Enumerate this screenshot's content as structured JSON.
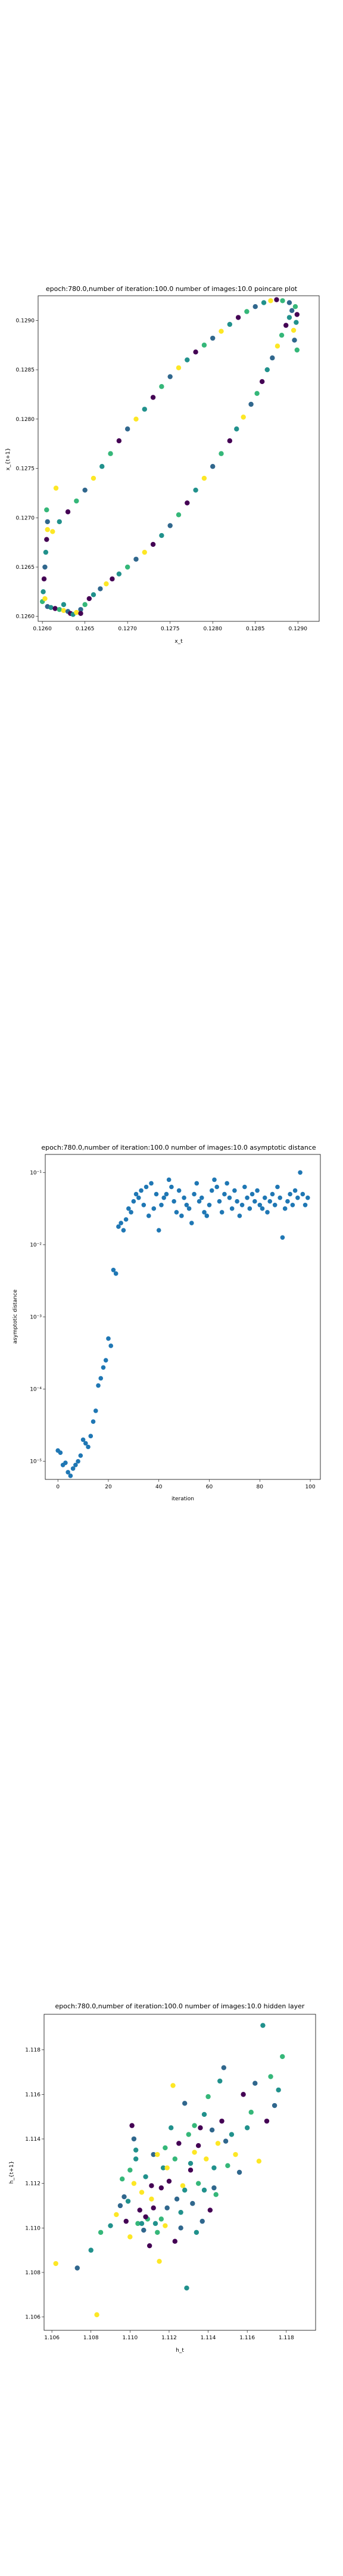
{
  "palette": [
    "#440154",
    "#30678d",
    "#21918c",
    "#35b779",
    "#fde725"
  ],
  "scatter_color": "#1f77b4",
  "chart_data": [
    {
      "type": "scatter",
      "title": "epoch:780.0,number of iteration:100.0 number of images:10.0 poincare plot",
      "xlabel": "x_t",
      "ylabel": "x_{t+1}",
      "xlim": [
        0.12595,
        0.12925
      ],
      "ylim": [
        0.12595,
        0.12925
      ],
      "xticks": [
        0.126,
        0.1265,
        0.127,
        0.1275,
        0.128,
        0.1285,
        0.129
      ],
      "xticklabels": [
        "0.1260",
        "0.1265",
        "0.1270",
        "0.1275",
        "0.1280",
        "0.1285",
        "0.1290"
      ],
      "yticks": [
        0.126,
        0.1265,
        0.127,
        0.1275,
        0.128,
        0.1285,
        0.129
      ],
      "yticklabels": [
        "0.1260",
        "0.1265",
        "0.1270",
        "0.1275",
        "0.1280",
        "0.1285",
        "0.1290"
      ],
      "points": [
        [
          0.126,
          0.12615,
          3
        ],
        [
          0.12601,
          0.12625,
          2
        ],
        [
          0.12602,
          0.12638,
          0
        ],
        [
          0.12603,
          0.1265,
          1
        ],
        [
          0.12604,
          0.12665,
          2
        ],
        [
          0.12605,
          0.12678,
          0
        ],
        [
          0.12606,
          0.12688,
          4
        ],
        [
          0.12603,
          0.12618,
          4
        ],
        [
          0.12606,
          0.1261,
          1
        ],
        [
          0.1261,
          0.12609,
          2
        ],
        [
          0.12615,
          0.12608,
          0
        ],
        [
          0.1262,
          0.12607,
          3
        ],
        [
          0.12625,
          0.12606,
          4
        ],
        [
          0.1263,
          0.12605,
          1
        ],
        [
          0.12633,
          0.12603,
          0
        ],
        [
          0.12636,
          0.12602,
          2
        ],
        [
          0.1264,
          0.12604,
          4
        ],
        [
          0.12645,
          0.12607,
          1
        ],
        [
          0.1265,
          0.12612,
          3
        ],
        [
          0.12655,
          0.12618,
          0
        ],
        [
          0.1266,
          0.12622,
          2
        ],
        [
          0.12668,
          0.12628,
          1
        ],
        [
          0.12675,
          0.12633,
          4
        ],
        [
          0.12682,
          0.12638,
          0
        ],
        [
          0.1269,
          0.12643,
          2
        ],
        [
          0.127,
          0.1265,
          3
        ],
        [
          0.1271,
          0.12658,
          1
        ],
        [
          0.1272,
          0.12665,
          4
        ],
        [
          0.1273,
          0.12673,
          0
        ],
        [
          0.1274,
          0.12682,
          2
        ],
        [
          0.1275,
          0.12692,
          1
        ],
        [
          0.1276,
          0.12703,
          3
        ],
        [
          0.1277,
          0.12715,
          0
        ],
        [
          0.1278,
          0.12728,
          2
        ],
        [
          0.1279,
          0.1274,
          4
        ],
        [
          0.128,
          0.12752,
          1
        ],
        [
          0.1281,
          0.12765,
          3
        ],
        [
          0.1282,
          0.12778,
          0
        ],
        [
          0.12828,
          0.1279,
          2
        ],
        [
          0.12836,
          0.12802,
          4
        ],
        [
          0.12845,
          0.12815,
          1
        ],
        [
          0.12852,
          0.12826,
          3
        ],
        [
          0.12858,
          0.12838,
          0
        ],
        [
          0.12864,
          0.1285,
          2
        ],
        [
          0.1287,
          0.12862,
          1
        ],
        [
          0.12876,
          0.12874,
          4
        ],
        [
          0.12881,
          0.12885,
          3
        ],
        [
          0.12886,
          0.12895,
          0
        ],
        [
          0.1289,
          0.12903,
          2
        ],
        [
          0.12893,
          0.1291,
          1
        ],
        [
          0.12897,
          0.12914,
          3
        ],
        [
          0.12899,
          0.12906,
          0
        ],
        [
          0.12898,
          0.12898,
          2
        ],
        [
          0.12895,
          0.1289,
          4
        ],
        [
          0.1289,
          0.12918,
          1
        ],
        [
          0.12882,
          0.1292,
          3
        ],
        [
          0.12875,
          0.12921,
          0
        ],
        [
          0.12868,
          0.1292,
          4
        ],
        [
          0.1286,
          0.12918,
          2
        ],
        [
          0.1285,
          0.12914,
          1
        ],
        [
          0.1284,
          0.12909,
          3
        ],
        [
          0.1283,
          0.12903,
          0
        ],
        [
          0.1282,
          0.12896,
          2
        ],
        [
          0.1281,
          0.12889,
          4
        ],
        [
          0.128,
          0.12882,
          1
        ],
        [
          0.1279,
          0.12875,
          3
        ],
        [
          0.1278,
          0.12868,
          0
        ],
        [
          0.1277,
          0.1286,
          2
        ],
        [
          0.1276,
          0.12852,
          4
        ],
        [
          0.1275,
          0.12843,
          1
        ],
        [
          0.1274,
          0.12833,
          3
        ],
        [
          0.1273,
          0.12822,
          0
        ],
        [
          0.1272,
          0.1281,
          2
        ],
        [
          0.1271,
          0.128,
          4
        ],
        [
          0.127,
          0.1279,
          1
        ],
        [
          0.1269,
          0.12778,
          0
        ],
        [
          0.1268,
          0.12765,
          3
        ],
        [
          0.1267,
          0.12752,
          2
        ],
        [
          0.1266,
          0.1274,
          4
        ],
        [
          0.1265,
          0.12728,
          1
        ],
        [
          0.1264,
          0.12717,
          3
        ],
        [
          0.1263,
          0.12706,
          0
        ],
        [
          0.1262,
          0.12696,
          2
        ],
        [
          0.12612,
          0.12686,
          4
        ],
        [
          0.12606,
          0.12696,
          1
        ],
        [
          0.12605,
          0.12708,
          3
        ],
        [
          0.12616,
          0.1273,
          4
        ],
        [
          0.12896,
          0.1288,
          1
        ],
        [
          0.12899,
          0.1287,
          3
        ],
        [
          0.12645,
          0.12603,
          0
        ],
        [
          0.12625,
          0.12612,
          2
        ]
      ]
    },
    {
      "type": "scatter",
      "title": "epoch:780.0,number of iteration:100.0  number of images:10.0 asymptotic distance",
      "xlabel": "iteration",
      "ylabel": "asymptotic distance",
      "xlim": [
        -5,
        104
      ],
      "yscale": "log",
      "ylim_exp": [
        -5.25,
        -0.75
      ],
      "xticks": [
        0,
        20,
        40,
        60,
        80,
        100
      ],
      "xticklabels": [
        "0",
        "20",
        "40",
        "60",
        "80",
        "100"
      ],
      "yticks": [
        -5,
        -4,
        -3,
        -2,
        -1
      ],
      "yticklabels": [
        "10⁻⁵",
        "10⁻⁴",
        "10⁻³",
        "10⁻²",
        "10⁻¹"
      ],
      "x": [
        0,
        1,
        2,
        3,
        4,
        5,
        6,
        7,
        8,
        9,
        10,
        11,
        12,
        13,
        14,
        15,
        16,
        17,
        18,
        19,
        20,
        21,
        22,
        23,
        24,
        25,
        26,
        27,
        28,
        29,
        30,
        31,
        32,
        33,
        34,
        35,
        36,
        37,
        38,
        39,
        40,
        41,
        42,
        43,
        44,
        45,
        46,
        47,
        48,
        49,
        50,
        51,
        52,
        53,
        54,
        55,
        56,
        57,
        58,
        59,
        60,
        61,
        62,
        63,
        64,
        65,
        66,
        67,
        68,
        69,
        70,
        71,
        72,
        73,
        74,
        75,
        76,
        77,
        78,
        79,
        80,
        81,
        82,
        83,
        84,
        85,
        86,
        87,
        88,
        89,
        90,
        91,
        92,
        93,
        94,
        95,
        96,
        97,
        98,
        99
      ],
      "y_log10": [
        -4.85,
        -4.88,
        -5.05,
        -5.02,
        -5.15,
        -5.2,
        -5.1,
        -5.05,
        -5.0,
        -4.92,
        -4.7,
        -4.75,
        -4.8,
        -4.65,
        -4.45,
        -4.3,
        -3.95,
        -3.85,
        -3.7,
        -3.6,
        -3.3,
        -3.4,
        -2.35,
        -2.4,
        -1.75,
        -1.7,
        -1.8,
        -1.65,
        -1.5,
        -1.55,
        -1.4,
        -1.3,
        -1.35,
        -1.25,
        -1.45,
        -1.2,
        -1.6,
        -1.15,
        -1.5,
        -1.3,
        -1.8,
        -1.45,
        -1.35,
        -1.3,
        -1.1,
        -1.2,
        -1.4,
        -1.55,
        -1.25,
        -1.6,
        -1.35,
        -1.45,
        -1.5,
        -1.7,
        -1.3,
        -1.15,
        -1.4,
        -1.35,
        -1.55,
        -1.6,
        -1.45,
        -1.25,
        -1.1,
        -1.2,
        -1.4,
        -1.55,
        -1.3,
        -1.15,
        -1.35,
        -1.5,
        -1.25,
        -1.4,
        -1.6,
        -1.45,
        -1.2,
        -1.35,
        -1.5,
        -1.3,
        -1.4,
        -1.25,
        -1.45,
        -1.5,
        -1.35,
        -1.55,
        -1.4,
        -1.3,
        -1.45,
        -1.2,
        -1.35,
        -1.9,
        -1.5,
        -1.4,
        -1.3,
        -1.45,
        -1.25,
        -1.35,
        -1.0,
        -1.3,
        -1.45,
        -1.35
      ]
    },
    {
      "type": "scatter",
      "title": "epoch:780.0,number of iteration:100.0  number of images:10.0 hidden layer",
      "xlabel": "h_t",
      "ylabel": "h_{t+1}",
      "xlim": [
        1.1056,
        1.1195
      ],
      "ylim": [
        1.1054,
        1.1196
      ],
      "xticks": [
        1.106,
        1.108,
        1.11,
        1.112,
        1.114,
        1.116,
        1.118
      ],
      "xticklabels": [
        "1.106",
        "1.108",
        "1.110",
        "1.112",
        "1.114",
        "1.116",
        "1.118"
      ],
      "yticks": [
        1.106,
        1.108,
        1.11,
        1.112,
        1.114,
        1.116,
        1.118
      ],
      "yticklabels": [
        "1.106",
        "1.108",
        "1.110",
        "1.112",
        "1.114",
        "1.116",
        "1.118"
      ],
      "points": [
        [
          1.1062,
          1.1084,
          4
        ],
        [
          1.1073,
          1.1082,
          1
        ],
        [
          1.108,
          1.109,
          2
        ],
        [
          1.1083,
          1.1061,
          4
        ],
        [
          1.1085,
          1.1098,
          3
        ],
        [
          1.109,
          1.1101,
          2
        ],
        [
          1.1093,
          1.1106,
          4
        ],
        [
          1.1095,
          1.111,
          1
        ],
        [
          1.1096,
          1.1122,
          3
        ],
        [
          1.1098,
          1.1103,
          0
        ],
        [
          1.1099,
          1.1112,
          2
        ],
        [
          1.11,
          1.1096,
          4
        ],
        [
          1.1101,
          1.1146,
          0
        ],
        [
          1.1102,
          1.114,
          1
        ],
        [
          1.1103,
          1.1131,
          2
        ],
        [
          1.1104,
          1.1102,
          3
        ],
        [
          1.1105,
          1.1108,
          0
        ],
        [
          1.1106,
          1.1116,
          4
        ],
        [
          1.1107,
          1.1099,
          1
        ],
        [
          1.1108,
          1.1123,
          2
        ],
        [
          1.1109,
          1.1104,
          3
        ],
        [
          1.111,
          1.1092,
          0
        ],
        [
          1.1111,
          1.1113,
          4
        ],
        [
          1.1112,
          1.1133,
          1
        ],
        [
          1.1113,
          1.1102,
          2
        ],
        [
          1.1114,
          1.1098,
          3
        ],
        [
          1.1115,
          1.1085,
          4
        ],
        [
          1.1116,
          1.1118,
          0
        ],
        [
          1.1117,
          1.1127,
          2
        ],
        [
          1.1118,
          1.1136,
          3
        ],
        [
          1.1119,
          1.1109,
          1
        ],
        [
          1.112,
          1.1121,
          0
        ],
        [
          1.1121,
          1.1145,
          2
        ],
        [
          1.1122,
          1.1164,
          4
        ],
        [
          1.1123,
          1.1131,
          3
        ],
        [
          1.1124,
          1.1113,
          1
        ],
        [
          1.1125,
          1.1138,
          0
        ],
        [
          1.1126,
          1.1107,
          2
        ],
        [
          1.1127,
          1.1119,
          4
        ],
        [
          1.1128,
          1.1156,
          1
        ],
        [
          1.1129,
          1.1073,
          2
        ],
        [
          1.113,
          1.1142,
          3
        ],
        [
          1.1131,
          1.1126,
          0
        ],
        [
          1.1132,
          1.1111,
          1
        ],
        [
          1.1133,
          1.1134,
          4
        ],
        [
          1.1134,
          1.1098,
          2
        ],
        [
          1.1135,
          1.112,
          3
        ],
        [
          1.1136,
          1.1145,
          0
        ],
        [
          1.1137,
          1.1103,
          1
        ],
        [
          1.1138,
          1.1117,
          2
        ],
        [
          1.1139,
          1.1131,
          4
        ],
        [
          1.114,
          1.1159,
          3
        ],
        [
          1.1141,
          1.1108,
          0
        ],
        [
          1.1142,
          1.1144,
          1
        ],
        [
          1.1143,
          1.1127,
          2
        ],
        [
          1.1144,
          1.1115,
          3
        ],
        [
          1.1145,
          1.1138,
          4
        ],
        [
          1.1146,
          1.1166,
          2
        ],
        [
          1.1147,
          1.1148,
          0
        ],
        [
          1.1148,
          1.1172,
          1
        ],
        [
          1.115,
          1.1128,
          3
        ],
        [
          1.1152,
          1.1142,
          2
        ],
        [
          1.1154,
          1.1133,
          4
        ],
        [
          1.1156,
          1.1125,
          1
        ],
        [
          1.1158,
          1.116,
          0
        ],
        [
          1.116,
          1.1145,
          2
        ],
        [
          1.1162,
          1.1152,
          3
        ],
        [
          1.1164,
          1.1165,
          1
        ],
        [
          1.1166,
          1.113,
          4
        ],
        [
          1.1168,
          1.1191,
          2
        ],
        [
          1.117,
          1.1148,
          0
        ],
        [
          1.1172,
          1.1168,
          3
        ],
        [
          1.1174,
          1.1155,
          1
        ],
        [
          1.1176,
          1.1162,
          2
        ],
        [
          1.1178,
          1.1177,
          3
        ],
        [
          1.1108,
          1.1105,
          0
        ],
        [
          1.1097,
          1.1114,
          1
        ],
        [
          1.1118,
          1.1101,
          4
        ],
        [
          1.1128,
          1.1117,
          2
        ],
        [
          1.1133,
          1.1146,
          3
        ],
        [
          1.1102,
          1.112,
          4
        ],
        [
          1.1112,
          1.1109,
          0
        ],
        [
          1.1126,
          1.11,
          1
        ],
        [
          1.1138,
          1.1151,
          2
        ],
        [
          1.11,
          1.1126,
          3
        ],
        [
          1.1114,
          1.1133,
          4
        ],
        [
          1.1123,
          1.1094,
          0
        ],
        [
          1.1143,
          1.1118,
          1
        ],
        [
          1.1106,
          1.1102,
          2
        ],
        [
          1.1119,
          1.1127,
          4
        ],
        [
          1.1135,
          1.1137,
          0
        ],
        [
          1.1149,
          1.1139,
          1
        ],
        [
          1.1103,
          1.1135,
          2
        ],
        [
          1.1116,
          1.1104,
          3
        ],
        [
          1.1111,
          1.1119,
          0
        ],
        [
          1.1131,
          1.1129,
          2
        ]
      ]
    }
  ]
}
